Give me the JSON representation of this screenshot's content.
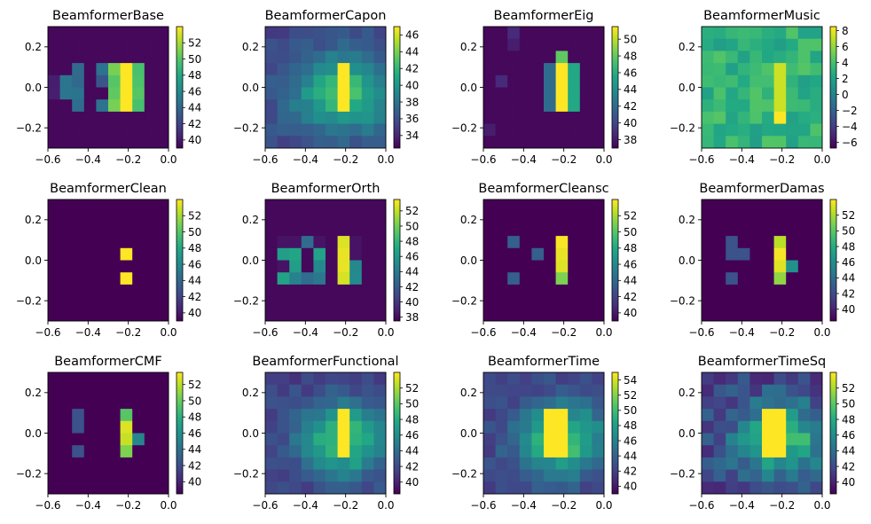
{
  "figure": {
    "colormap": "viridis",
    "colors": {
      "low": "#440154",
      "mid": "#21918c",
      "high": "#fde725"
    },
    "x_ticks": [
      "-0.6",
      "-0.4",
      "-0.2",
      "0.0"
    ],
    "y_ticks": [
      "0.2",
      "0.0",
      "-0.2"
    ],
    "xlim": [
      -0.6,
      0.0
    ],
    "ylim": [
      -0.3,
      0.3
    ],
    "grid": false
  },
  "chart_data": [
    {
      "type": "heatmap",
      "title": "BeamformerBase",
      "clim": [
        39,
        54
      ],
      "cbar_ticks": [
        "40",
        "42",
        "44",
        "46",
        "48",
        "50",
        "52"
      ],
      "cbar_vals": [
        40,
        42,
        44,
        46,
        48,
        50,
        52
      ],
      "pattern": "base"
    },
    {
      "type": "heatmap",
      "title": "BeamformerCapon",
      "clim": [
        32.5,
        47
      ],
      "cbar_ticks": [
        "34",
        "36",
        "38",
        "40",
        "42",
        "44",
        "46"
      ],
      "cbar_vals": [
        34,
        36,
        38,
        40,
        42,
        44,
        46
      ],
      "pattern": "capon"
    },
    {
      "type": "heatmap",
      "title": "BeamformerEig",
      "clim": [
        37,
        51.5
      ],
      "cbar_ticks": [
        "38",
        "40",
        "42",
        "44",
        "46",
        "48",
        "50"
      ],
      "cbar_vals": [
        38,
        40,
        42,
        44,
        46,
        48,
        50
      ],
      "pattern": "eig"
    },
    {
      "type": "heatmap",
      "title": "BeamformerMusic",
      "clim": [
        -6.7,
        8.5
      ],
      "cbar_ticks": [
        "8",
        "6",
        "4",
        "2",
        "0",
        "−2",
        "−4",
        "−6"
      ],
      "cbar_vals": [
        8,
        6,
        4,
        2,
        0,
        -2,
        -4,
        -6
      ],
      "pattern": "music"
    },
    {
      "type": "heatmap",
      "title": "BeamformerClean",
      "clim": [
        39,
        54
      ],
      "cbar_ticks": [
        "40",
        "42",
        "44",
        "46",
        "48",
        "50",
        "52"
      ],
      "cbar_vals": [
        40,
        42,
        44,
        46,
        48,
        50,
        52
      ],
      "pattern": "clean"
    },
    {
      "type": "heatmap",
      "title": "BeamformerOrth",
      "clim": [
        37.5,
        53.5
      ],
      "cbar_ticks": [
        "38",
        "40",
        "42",
        "44",
        "46",
        "48",
        "50",
        "52"
      ],
      "cbar_vals": [
        38,
        40,
        42,
        44,
        46,
        48,
        50,
        52
      ],
      "pattern": "orth"
    },
    {
      "type": "heatmap",
      "title": "BeamformerCleansc",
      "clim": [
        39,
        54
      ],
      "cbar_ticks": [
        "40",
        "42",
        "44",
        "46",
        "48",
        "50",
        "52"
      ],
      "cbar_vals": [
        40,
        42,
        44,
        46,
        48,
        50,
        52
      ],
      "pattern": "cleansc"
    },
    {
      "type": "heatmap",
      "title": "BeamformerDamas",
      "clim": [
        38.5,
        54
      ],
      "cbar_ticks": [
        "40",
        "42",
        "44",
        "46",
        "48",
        "50",
        "52"
      ],
      "cbar_vals": [
        40,
        42,
        44,
        46,
        48,
        50,
        52
      ],
      "pattern": "damas"
    },
    {
      "type": "heatmap",
      "title": "BeamformerCMF",
      "clim": [
        38.5,
        53.5
      ],
      "cbar_ticks": [
        "40",
        "42",
        "44",
        "46",
        "48",
        "50",
        "52"
      ],
      "cbar_vals": [
        40,
        42,
        44,
        46,
        48,
        50,
        52
      ],
      "pattern": "cmf"
    },
    {
      "type": "heatmap",
      "title": "BeamformerFunctional",
      "clim": [
        38.5,
        54
      ],
      "cbar_ticks": [
        "40",
        "42",
        "44",
        "46",
        "48",
        "50",
        "52"
      ],
      "cbar_vals": [
        40,
        42,
        44,
        46,
        48,
        50,
        52
      ],
      "pattern": "functional"
    },
    {
      "type": "heatmap",
      "title": "BeamformerTime",
      "clim": [
        39,
        55
      ],
      "cbar_ticks": [
        "40",
        "42",
        "44",
        "46",
        "48",
        "50",
        "52",
        "54"
      ],
      "cbar_vals": [
        40,
        42,
        44,
        46,
        48,
        50,
        52,
        54
      ],
      "pattern": "time"
    },
    {
      "type": "heatmap",
      "title": "BeamformerTimeSq",
      "clim": [
        38.5,
        54
      ],
      "cbar_ticks": [
        "40",
        "42",
        "44",
        "46",
        "48",
        "50",
        "52"
      ],
      "cbar_vals": [
        40,
        42,
        44,
        46,
        48,
        50,
        52
      ],
      "pattern": "timesq"
    }
  ]
}
